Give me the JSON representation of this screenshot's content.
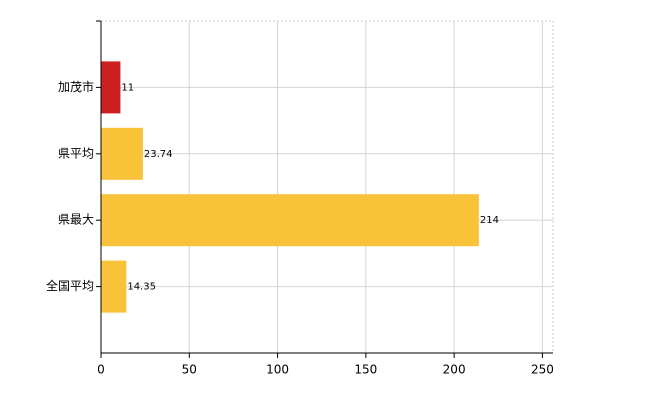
{
  "chart_data": {
    "type": "bar",
    "orientation": "horizontal",
    "categories": [
      "加茂市",
      "県平均",
      "県最大",
      "全国平均"
    ],
    "values": [
      11,
      23.74,
      214,
      14.35
    ],
    "colors": [
      "#cc2020",
      "#f8c338",
      "#f8c338",
      "#f8c338"
    ],
    "xlim": [
      0,
      256
    ],
    "xticks": [
      0,
      50,
      100,
      150,
      200,
      250
    ],
    "grid": true
  }
}
